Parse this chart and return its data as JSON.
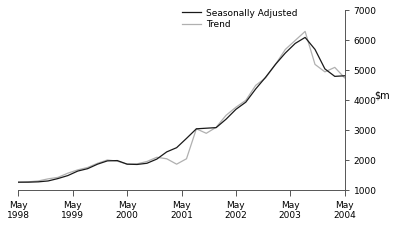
{
  "ylim": [
    1000,
    7000
  ],
  "yticks": [
    1000,
    2000,
    3000,
    4000,
    5000,
    6000,
    7000
  ],
  "xtick_labels": [
    "May\n1998",
    "May\n1999",
    "May\n2000",
    "May\n2001",
    "May\n2002",
    "May\n2003",
    "May\n2004"
  ],
  "xtick_positions": [
    0,
    4,
    8,
    12,
    16,
    20,
    24
  ],
  "trend_color": "#1a1a1a",
  "seasonal_color": "#b0b0b0",
  "legend_labels": [
    "Trend",
    "Seasonally Adjusted"
  ],
  "background_color": "#ffffff",
  "trend": [
    1270,
    1270,
    1280,
    1310,
    1390,
    1490,
    1640,
    1720,
    1870,
    1980,
    1990,
    1870,
    1860,
    1900,
    2040,
    2280,
    2420,
    2730,
    3050,
    3070,
    3090,
    3370,
    3700,
    3940,
    4380,
    4770,
    5200,
    5580,
    5900,
    6100,
    5700,
    5050,
    4800,
    4820
  ],
  "seasonal": [
    1260,
    1280,
    1310,
    1380,
    1430,
    1570,
    1680,
    1760,
    1900,
    2010,
    1970,
    1870,
    1880,
    1960,
    2100,
    2050,
    1870,
    2050,
    3050,
    2900,
    3100,
    3500,
    3770,
    4000,
    4500,
    4750,
    5200,
    5700,
    6000,
    6300,
    5200,
    4950,
    5100,
    4750
  ]
}
